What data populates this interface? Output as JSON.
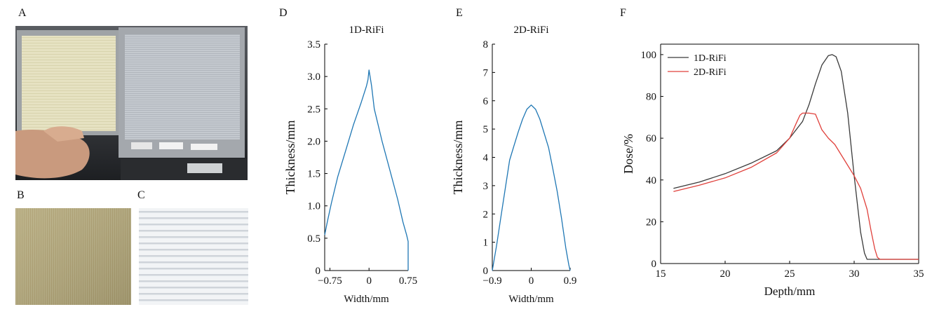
{
  "panels": {
    "a": "A",
    "b": "B",
    "c": "C",
    "d": "D",
    "e": "E",
    "f": "F"
  },
  "photo_a": {
    "left_frame_label": "",
    "right_frame_label": ""
  },
  "colors": {
    "blue_line": "#1f77b4",
    "black_line": "#3a3a3a",
    "red_line": "#e0413c",
    "photo_b_fill": "#b8ae82",
    "photo_c_fill": "#e9ecef"
  },
  "chart_data": [
    {
      "id": "D",
      "type": "line",
      "title": "1D-RiFi",
      "xlabel": "Width/mm",
      "ylabel": "Thickness/mm",
      "xlim": [
        -0.85,
        0.75
      ],
      "ylim": [
        0,
        3.5
      ],
      "xticks": [
        -0.75,
        0,
        0.75
      ],
      "xtick_labels": [
        "−0.75",
        "0",
        "0.75"
      ],
      "yticks": [
        0,
        0.5,
        1.0,
        1.5,
        2.0,
        2.5,
        3.0,
        3.5
      ],
      "ytick_labels": [
        "0",
        "0.5",
        "1.0",
        "1.5",
        "2.0",
        "2.5",
        "3.0",
        "3.5"
      ],
      "series": [
        {
          "color": "#1f77b4",
          "x": [
            -0.85,
            -0.8,
            -0.72,
            -0.6,
            -0.45,
            -0.3,
            -0.15,
            -0.05,
            -0.02,
            0.0,
            0.02,
            0.04,
            0.05,
            0.1,
            0.25,
            0.4,
            0.55,
            0.65,
            0.72,
            0.75,
            0.75
          ],
          "y": [
            0.55,
            0.75,
            1.05,
            1.45,
            1.85,
            2.25,
            2.6,
            2.85,
            2.95,
            3.1,
            3.0,
            2.9,
            2.85,
            2.5,
            2.0,
            1.55,
            1.1,
            0.75,
            0.55,
            0.45,
            0.0
          ]
        }
      ]
    },
    {
      "id": "E",
      "type": "line",
      "title": "2D-RiFi",
      "xlabel": "Width/mm",
      "ylabel": "Thickness/mm",
      "xlim": [
        -0.9,
        0.9
      ],
      "ylim": [
        0,
        8
      ],
      "xticks": [
        -0.9,
        0,
        0.9
      ],
      "xtick_labels": [
        "−0.9",
        "0",
        "0.9"
      ],
      "yticks": [
        0,
        1,
        2,
        3,
        4,
        5,
        6,
        7,
        8
      ],
      "ytick_labels": [
        "0",
        "1",
        "2",
        "3",
        "4",
        "5",
        "6",
        "7",
        "8"
      ],
      "series": [
        {
          "color": "#1f77b4",
          "x": [
            -0.9,
            -0.8,
            -0.7,
            -0.6,
            -0.5,
            -0.4,
            -0.3,
            -0.2,
            -0.1,
            0.0,
            0.1,
            0.2,
            0.3,
            0.4,
            0.5,
            0.6,
            0.7,
            0.8,
            0.87,
            0.9
          ],
          "y": [
            0.0,
            0.9,
            1.9,
            2.9,
            3.9,
            4.4,
            4.9,
            5.35,
            5.7,
            5.85,
            5.7,
            5.35,
            4.85,
            4.35,
            3.6,
            2.8,
            1.85,
            0.8,
            0.2,
            0.0
          ]
        }
      ]
    },
    {
      "id": "F",
      "type": "line",
      "title": "",
      "xlabel": "Depth/mm",
      "ylabel": "Dose/%",
      "xlim": [
        15,
        35
      ],
      "ylim": [
        0,
        105
      ],
      "xticks": [
        15,
        20,
        25,
        30,
        35
      ],
      "xtick_labels": [
        "15",
        "20",
        "25",
        "30",
        "35"
      ],
      "yticks": [
        0,
        20,
        40,
        60,
        80,
        100
      ],
      "ytick_labels": [
        "0",
        "20",
        "40",
        "60",
        "80",
        "100"
      ],
      "legend_position": "top-left",
      "series": [
        {
          "name": "1D-RiFi",
          "color": "#3a3a3a",
          "x": [
            16,
            18,
            20,
            22,
            24,
            25,
            26,
            26.5,
            27,
            27.5,
            28,
            28.3,
            28.6,
            29,
            29.5,
            30,
            30.5,
            30.8,
            31,
            32,
            35
          ],
          "y": [
            36,
            39,
            43,
            48,
            54,
            60,
            68,
            76,
            86,
            95,
            99.5,
            100,
            99,
            92,
            72,
            42,
            15,
            5,
            2,
            2,
            2
          ]
        },
        {
          "name": "2D-RiFi",
          "color": "#e0413c",
          "x": [
            16,
            18,
            20,
            22,
            24,
            25,
            25.5,
            25.8,
            26,
            26.5,
            27,
            27.5,
            28,
            28.5,
            29,
            29.5,
            30,
            30.5,
            31,
            31.3,
            31.6,
            31.8,
            32,
            35
          ],
          "y": [
            34.5,
            37.5,
            41,
            46,
            53,
            60,
            67,
            71,
            72,
            72,
            71.5,
            64,
            60,
            57,
            52,
            47,
            42,
            36,
            26,
            16,
            7,
            3,
            2,
            2
          ]
        }
      ]
    }
  ]
}
